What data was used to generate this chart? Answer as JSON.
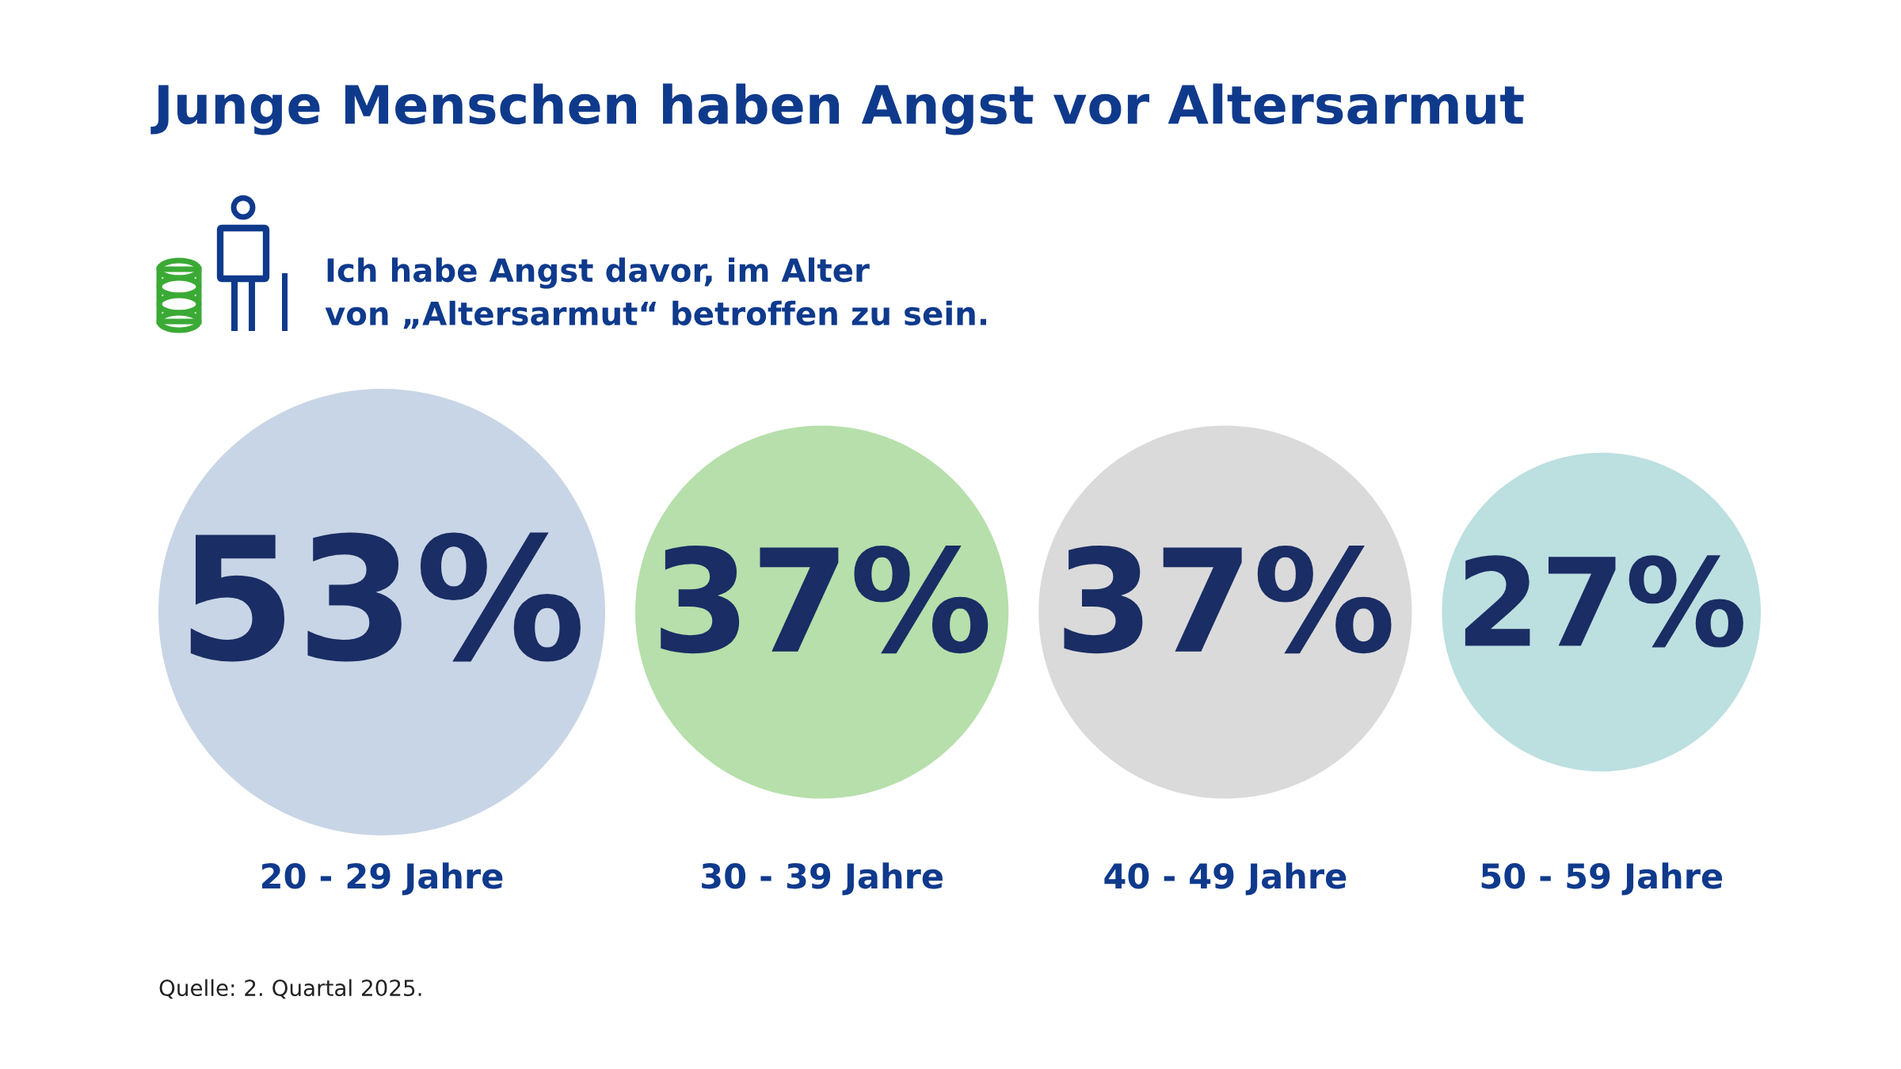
{
  "chart_data": {
    "type": "other",
    "title": "Junge Menschen haben Angst vor Altersarmut",
    "subtitle": "Ich habe Angst davor, im Alter\nvon „Altersarmut“ betroffen zu sein.",
    "categories": [
      "20 - 29 Jahre",
      "30 - 39 Jahre",
      "40 - 49 Jahre",
      "50 - 59 Jahre"
    ],
    "values": [
      53,
      37,
      37,
      27
    ],
    "value_labels": [
      "53%",
      "37%",
      "37%",
      "27%"
    ],
    "colors": [
      "#c8d5e6",
      "#b6dfab",
      "#dadada",
      "#bcdfe0"
    ],
    "annotations": [
      "Quelle: 2. Quartal 2025."
    ]
  }
}
